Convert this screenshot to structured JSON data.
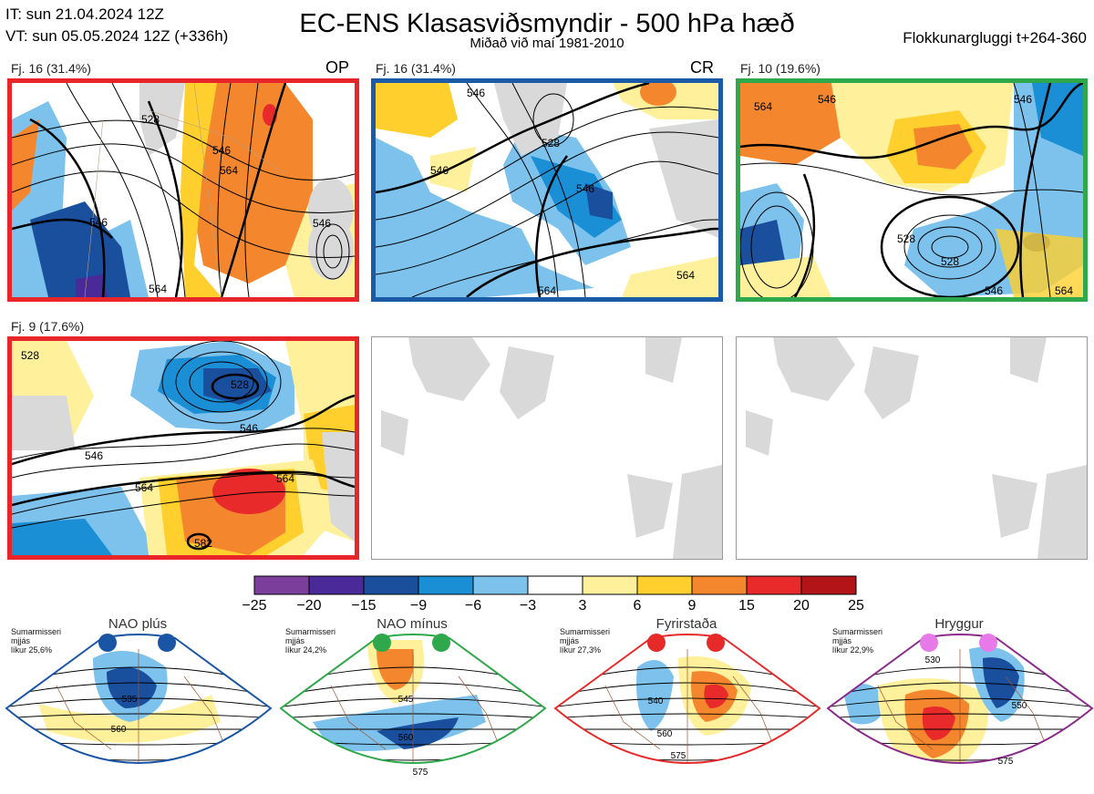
{
  "header": {
    "it_line": "IT: sun 21.04.2024 12Z",
    "vt_line": "VT: sun 05.05.2024 12Z  (+336h)",
    "title": "EC-ENS Klasasviðsmyndir - 500 hPa hæð",
    "subtitle": "Miðað við maí 1981-2010",
    "window": "Flokkunargluggi t+264-360"
  },
  "panels": [
    {
      "label": "Fj. 16 (31.4%)",
      "tag": "OP",
      "frame_color": "#e8262a",
      "contours": [
        "528",
        "546",
        "564",
        "546",
        "564",
        "546"
      ]
    },
    {
      "label": "Fj. 16 (31.4%)",
      "tag": "CR",
      "frame_color": "#1a5aa6",
      "contours": [
        "546",
        "528",
        "546",
        "546",
        "564",
        "564"
      ]
    },
    {
      "label": "Fj. 10 (19.6%)",
      "tag": "",
      "frame_color": "#2ea84a",
      "contours": [
        "564",
        "546",
        "546",
        "528",
        "528",
        "546",
        "564"
      ]
    },
    {
      "label": "Fj. 9 (17.6%)",
      "tag": "",
      "frame_color": "#e8262a",
      "contours": [
        "528",
        "528",
        "546",
        "546",
        "564",
        "564",
        "582"
      ]
    }
  ],
  "colorbar": {
    "ticks": [
      "−25",
      "−20",
      "−15",
      "−9",
      "−6",
      "−3",
      "3",
      "6",
      "9",
      "15",
      "20",
      "25"
    ],
    "colors": [
      "#7b3f9b",
      "#4a2a99",
      "#1a4f9e",
      "#1a8fd6",
      "#7cc2ec",
      "#ffffff",
      "#fff19c",
      "#ffcf2e",
      "#f4872e",
      "#e82a2a",
      "#b21418"
    ]
  },
  "regimes": [
    {
      "name": "NAO plús",
      "note": [
        "Sumarmisseri",
        "mjjás",
        "líkur 25,6%"
      ],
      "dot_color": "#1a55a5",
      "frame_color": "#1a55a5",
      "contours": [
        "535",
        "560"
      ]
    },
    {
      "name": "NAO mínus",
      "note": [
        "Sumarmisseri",
        "mjjás",
        "líkur 24,2%"
      ],
      "dot_color": "#2ea84a",
      "frame_color": "#2ea84a",
      "contours": [
        "545",
        "560",
        "575"
      ]
    },
    {
      "name": "Fyrirstaða",
      "note": [
        "Sumarmisseri",
        "mjjás",
        "líkur 27,3%"
      ],
      "dot_color": "#e62a2a",
      "frame_color": "#e62a2a",
      "contours": [
        "540",
        "560",
        "575"
      ]
    },
    {
      "name": "Hryggur",
      "note": [
        "Sumarmisseri",
        "mjjás",
        "líkur 22,9%"
      ],
      "dot_color": "#e879e8",
      "frame_color": "#8a2a8a",
      "contours": [
        "530",
        "550",
        "575"
      ]
    }
  ]
}
